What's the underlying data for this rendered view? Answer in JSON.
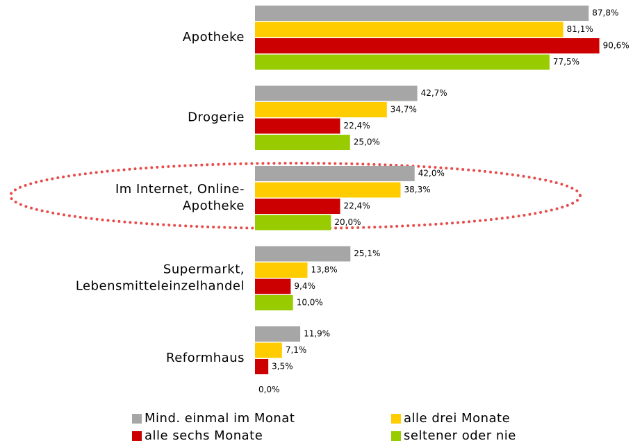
{
  "chart_data": {
    "type": "bar",
    "orientation": "horizontal",
    "categories": [
      [
        "Apotheke"
      ],
      [
        "Drogerie"
      ],
      [
        "Im Internet, Online-",
        "Apotheke"
      ],
      [
        "Supermarkt,",
        "Lebensmitteleinzelhandel"
      ],
      [
        "Reformhaus"
      ]
    ],
    "series": [
      {
        "name": "Mind. einmal im Monat",
        "color": "#a6a6a6",
        "values": [
          87.8,
          42.7,
          42.0,
          25.1,
          11.9
        ],
        "value_labels": [
          "87,8%",
          "42,7%",
          "42,0%",
          "25,1%",
          "11,9%"
        ]
      },
      {
        "name": "alle drei Monate",
        "color": "#ffcc00",
        "values": [
          81.1,
          34.7,
          38.3,
          13.8,
          7.1
        ],
        "value_labels": [
          "81,1%",
          "34,7%",
          "38,3%",
          "13,8%",
          "7,1%"
        ]
      },
      {
        "name": "alle sechs Monate",
        "color": "#cc0000",
        "values": [
          90.6,
          22.4,
          22.4,
          9.4,
          3.5
        ],
        "value_labels": [
          "90,6%",
          "22,4%",
          "22,4%",
          "9,4%",
          "3,5%"
        ]
      },
      {
        "name": "seltener oder nie",
        "color": "#99cc00",
        "values": [
          77.5,
          25.0,
          20.0,
          10.0,
          0.0
        ],
        "value_labels": [
          "77,5%",
          "25,0%",
          "20,0%",
          "10,0%",
          "0,0%"
        ]
      }
    ],
    "xlim": [
      0,
      100
    ],
    "grid": false,
    "legend": "bottom"
  }
}
